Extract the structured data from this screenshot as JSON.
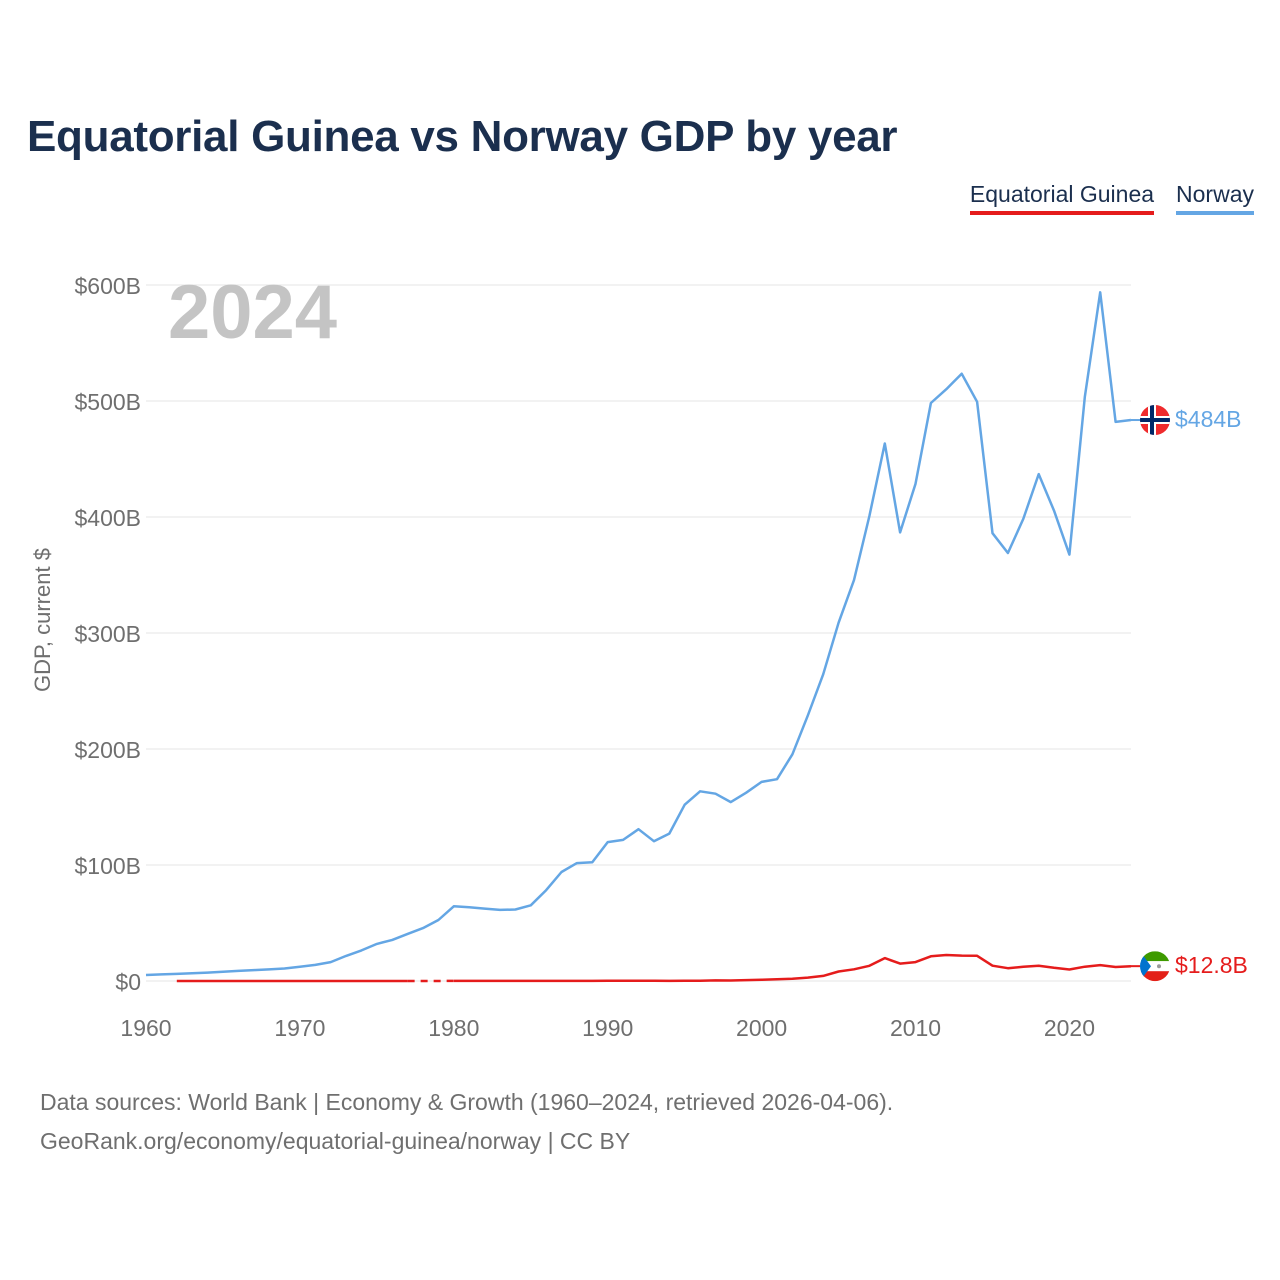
{
  "title": "Equatorial Guinea vs Norway GDP by year",
  "legend": [
    {
      "label": "Equatorial Guinea",
      "color": "#e51c1c"
    },
    {
      "label": "Norway",
      "color": "#64a6e4"
    }
  ],
  "year_label": "2024",
  "source": {
    "line1": "Data sources: World Bank | Economy & Growth (1960–2024, retrieved 2026-04-06).",
    "line2": "GeoRank.org/economy/equatorial-guinea/norway | CC BY"
  },
  "chart_data": {
    "type": "line",
    "title": "Equatorial Guinea vs Norway GDP by year",
    "xlabel": "",
    "ylabel": "GDP, current $",
    "xlim": [
      1960,
      2024
    ],
    "ylim": [
      0,
      600
    ],
    "y_unit": "billion US$",
    "x_ticks": [
      1960,
      1970,
      1980,
      1990,
      2000,
      2010,
      2020
    ],
    "x_tick_labels": [
      "1960",
      "1970",
      "1980",
      "1990",
      "2000",
      "2010",
      "2020"
    ],
    "y_ticks": [
      0,
      100,
      200,
      300,
      400,
      500,
      600
    ],
    "y_tick_labels": [
      "$0",
      "$100B",
      "$200B",
      "$300B",
      "$400B",
      "$500B",
      "$600B"
    ],
    "grid": true,
    "legend_position": "top-right",
    "series": [
      {
        "name": "Norway",
        "color": "#64a6e4",
        "end_label": "$484B",
        "points": [
          [
            1960,
            5.2
          ],
          [
            1961,
            5.7
          ],
          [
            1962,
            6.1
          ],
          [
            1963,
            6.6
          ],
          [
            1964,
            7.2
          ],
          [
            1965,
            8.0
          ],
          [
            1966,
            8.7
          ],
          [
            1967,
            9.4
          ],
          [
            1968,
            10.0
          ],
          [
            1969,
            10.8
          ],
          [
            1970,
            12.2
          ],
          [
            1971,
            13.9
          ],
          [
            1972,
            16.3
          ],
          [
            1973,
            21.6
          ],
          [
            1974,
            26.4
          ],
          [
            1975,
            32.0
          ],
          [
            1976,
            35.4
          ],
          [
            1977,
            40.6
          ],
          [
            1978,
            45.6
          ],
          [
            1979,
            52.6
          ],
          [
            1980,
            64.4
          ],
          [
            1981,
            63.6
          ],
          [
            1982,
            62.4
          ],
          [
            1983,
            61.3
          ],
          [
            1984,
            61.6
          ],
          [
            1985,
            65.3
          ],
          [
            1986,
            78.4
          ],
          [
            1987,
            94.0
          ],
          [
            1988,
            101.6
          ],
          [
            1989,
            102.3
          ],
          [
            1990,
            119.7
          ],
          [
            1991,
            121.6
          ],
          [
            1992,
            130.9
          ],
          [
            1993,
            120.5
          ],
          [
            1994,
            127.1
          ],
          [
            1995,
            152.0
          ],
          [
            1996,
            163.5
          ],
          [
            1997,
            161.5
          ],
          [
            1998,
            154.2
          ],
          [
            1999,
            162.3
          ],
          [
            2000,
            171.6
          ],
          [
            2001,
            174.0
          ],
          [
            2002,
            195.4
          ],
          [
            2003,
            228.8
          ],
          [
            2004,
            264.4
          ],
          [
            2005,
            308.9
          ],
          [
            2006,
            345.6
          ],
          [
            2007,
            400.9
          ],
          [
            2008,
            463.4
          ],
          [
            2009,
            386.7
          ],
          [
            2010,
            428.5
          ],
          [
            2011,
            498.3
          ],
          [
            2012,
            510.2
          ],
          [
            2013,
            523.5
          ],
          [
            2014,
            499.3
          ],
          [
            2015,
            386.0
          ],
          [
            2016,
            369.0
          ],
          [
            2017,
            398.4
          ],
          [
            2018,
            437.0
          ],
          [
            2019,
            405.5
          ],
          [
            2020,
            367.6
          ],
          [
            2021,
            503.4
          ],
          [
            2022,
            593.7
          ],
          [
            2023,
            482.0
          ],
          [
            2024,
            483.6
          ]
        ]
      },
      {
        "name": "Equatorial Guinea",
        "color": "#e51c1c",
        "end_label": "$12.8B",
        "gap": [
          1977,
          1980
        ],
        "points": [
          [
            1962,
            0.01
          ],
          [
            1963,
            0.01
          ],
          [
            1964,
            0.01
          ],
          [
            1965,
            0.01
          ],
          [
            1966,
            0.01
          ],
          [
            1967,
            0.01
          ],
          [
            1968,
            0.01
          ],
          [
            1969,
            0.01
          ],
          [
            1970,
            0.02
          ],
          [
            1971,
            0.02
          ],
          [
            1972,
            0.02
          ],
          [
            1973,
            0.02
          ],
          [
            1974,
            0.03
          ],
          [
            1975,
            0.03
          ],
          [
            1976,
            0.03
          ],
          [
            1977,
            0.03
          ],
          [
            1980,
            0.06
          ],
          [
            1981,
            0.06
          ],
          [
            1982,
            0.06
          ],
          [
            1983,
            0.05
          ],
          [
            1984,
            0.05
          ],
          [
            1985,
            0.06
          ],
          [
            1986,
            0.08
          ],
          [
            1987,
            0.09
          ],
          [
            1988,
            0.1
          ],
          [
            1989,
            0.1
          ],
          [
            1990,
            0.13
          ],
          [
            1991,
            0.13
          ],
          [
            1992,
            0.15
          ],
          [
            1993,
            0.15
          ],
          [
            1994,
            0.12
          ],
          [
            1995,
            0.14
          ],
          [
            1996,
            0.23
          ],
          [
            1997,
            0.5
          ],
          [
            1998,
            0.44
          ],
          [
            1999,
            0.76
          ],
          [
            2000,
            1.05
          ],
          [
            2001,
            1.56
          ],
          [
            2002,
            2.0
          ],
          [
            2003,
            2.95
          ],
          [
            2004,
            4.4
          ],
          [
            2005,
            8.2
          ],
          [
            2006,
            10.1
          ],
          [
            2007,
            13.1
          ],
          [
            2008,
            19.7
          ],
          [
            2009,
            15.0
          ],
          [
            2010,
            16.3
          ],
          [
            2011,
            21.3
          ],
          [
            2012,
            22.4
          ],
          [
            2013,
            21.9
          ],
          [
            2014,
            21.7
          ],
          [
            2015,
            13.2
          ],
          [
            2016,
            11.0
          ],
          [
            2017,
            12.2
          ],
          [
            2018,
            13.2
          ],
          [
            2019,
            11.4
          ],
          [
            2020,
            9.9
          ],
          [
            2021,
            12.3
          ],
          [
            2022,
            13.7
          ],
          [
            2023,
            12.1
          ],
          [
            2024,
            12.8
          ]
        ]
      }
    ]
  }
}
